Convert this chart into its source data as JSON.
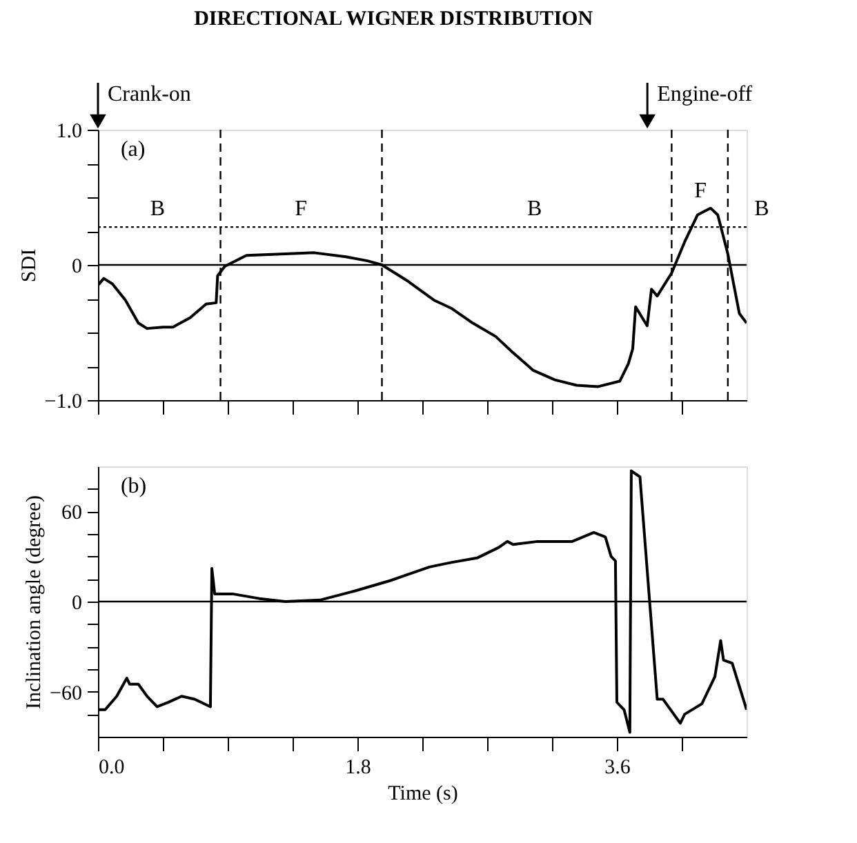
{
  "chart_data": [
    {
      "type": "line",
      "title": "DIRECTIONAL WIGNER DISTRIBUTION",
      "ylabel": "SDI",
      "xlim": [
        0,
        4.5
      ],
      "ylim": [
        -1.0,
        1.0
      ],
      "xticks": [
        {
          "value": 0,
          "label": null
        },
        {
          "value": 0.45,
          "label": null
        },
        {
          "value": 0.9,
          "label": null
        },
        {
          "value": 1.35,
          "label": null
        },
        {
          "value": 1.8,
          "label": null
        },
        {
          "value": 2.25,
          "label": null
        },
        {
          "value": 2.7,
          "label": null
        },
        {
          "value": 3.15,
          "label": null
        },
        {
          "value": 3.6,
          "label": null
        },
        {
          "value": 4.05,
          "label": null
        }
      ],
      "yticks": [
        {
          "value": 1.0,
          "label": "1.0"
        },
        {
          "value": 0.75,
          "label": null
        },
        {
          "value": 0.5,
          "label": null
        },
        {
          "value": 0.25,
          "label": null
        },
        {
          "value": 0,
          "label": "0"
        },
        {
          "value": -0.25,
          "label": null
        },
        {
          "value": -0.5,
          "label": null
        },
        {
          "value": -0.75,
          "label": null
        },
        {
          "value": -1.0,
          "label": "−1.0"
        }
      ],
      "tick_labels": "y",
      "grid": false,
      "line_style": "solid",
      "marker": "none",
      "series": [
        {
          "color": "#000000",
          "x": [
            0,
            0.04,
            0.1,
            0.19,
            0.28,
            0.34,
            0.45,
            0.52,
            0.64,
            0.75,
            0.82,
            0.83,
            0.88,
            1.03,
            1.27,
            1.5,
            1.72,
            1.87,
            1.97,
            2.15,
            2.33,
            2.45,
            2.6,
            2.76,
            2.87,
            3.02,
            3.17,
            3.32,
            3.47,
            3.62,
            3.68,
            3.71,
            3.73,
            3.81,
            3.84,
            3.88,
            3.98,
            4.07,
            4.16,
            4.25,
            4.3,
            4.37,
            4.45,
            4.5
          ],
          "values": [
            -0.15,
            -0.1,
            -0.14,
            -0.26,
            -0.43,
            -0.47,
            -0.46,
            -0.46,
            -0.39,
            -0.29,
            -0.28,
            -0.08,
            -0.01,
            0.07,
            0.08,
            0.09,
            0.06,
            0.03,
            0,
            -0.12,
            -0.26,
            -0.32,
            -0.43,
            -0.53,
            -0.64,
            -0.78,
            -0.85,
            -0.89,
            -0.9,
            -0.86,
            -0.73,
            -0.62,
            -0.31,
            -0.45,
            -0.18,
            -0.23,
            -0.06,
            0.17,
            0.37,
            0.42,
            0.37,
            0.08,
            -0.36,
            -0.43
          ]
        }
      ],
      "ref_lines": [
        {
          "axis": "y",
          "value": 0,
          "color": "#000000",
          "line_style": "solid"
        },
        {
          "axis": "y",
          "value": 0.28,
          "color": "#000000",
          "line_style": "dotted"
        },
        {
          "axis": "x",
          "value": 0.85,
          "color": "#000000",
          "line_style": "dashed"
        },
        {
          "axis": "x",
          "value": 1.97,
          "color": "#000000",
          "line_style": "dashed"
        },
        {
          "axis": "x",
          "value": 3.98,
          "color": "#000000",
          "line_style": "dashed"
        },
        {
          "axis": "x",
          "value": 4.37,
          "color": "#000000",
          "line_style": "dashed"
        }
      ],
      "annotations": [
        "(a)",
        "Crank-on",
        "Engine-off",
        "B",
        "F",
        "B",
        "F",
        "B"
      ]
    },
    {
      "type": "line",
      "xlabel": "Time (s)",
      "ylabel": "Inclination angle (degree)",
      "xlim": [
        0,
        4.5
      ],
      "ylim": [
        -90,
        90
      ],
      "xticks": [
        {
          "value": 0,
          "label": "0.0"
        },
        {
          "value": 0.45,
          "label": null
        },
        {
          "value": 0.9,
          "label": null
        },
        {
          "value": 1.35,
          "label": null
        },
        {
          "value": 1.8,
          "label": "1.8"
        },
        {
          "value": 2.25,
          "label": null
        },
        {
          "value": 2.7,
          "label": null
        },
        {
          "value": 3.15,
          "label": null
        },
        {
          "value": 3.6,
          "label": "3.6"
        },
        {
          "value": 4.05,
          "label": null
        }
      ],
      "yticks": [
        {
          "value": 75,
          "label": null
        },
        {
          "value": 60,
          "label": "60"
        },
        {
          "value": 45,
          "label": null
        },
        {
          "value": 30,
          "label": null
        },
        {
          "value": 15,
          "label": null
        },
        {
          "value": 0,
          "label": "0"
        },
        {
          "value": -15,
          "label": null
        },
        {
          "value": -30,
          "label": null
        },
        {
          "value": -45,
          "label": null
        },
        {
          "value": -60,
          "label": "−60"
        },
        {
          "value": -75,
          "label": null
        }
      ],
      "grid": false,
      "line_style": "solid",
      "marker": "none",
      "series": [
        {
          "color": "#000000",
          "x": [
            0,
            0.05,
            0.13,
            0.2,
            0.22,
            0.28,
            0.34,
            0.41,
            0.49,
            0.58,
            0.67,
            0.78,
            0.79,
            0.81,
            0.94,
            1.12,
            1.3,
            1.54,
            1.78,
            2.03,
            2.12,
            2.3,
            2.45,
            2.63,
            2.78,
            2.84,
            2.88,
            3.05,
            3.29,
            3.44,
            3.52,
            3.56,
            3.59,
            3.6,
            3.65,
            3.69,
            3.7,
            3.76,
            3.88,
            3.92,
            4.04,
            4.07,
            4.19,
            4.28,
            4.32,
            4.34,
            4.4,
            4.5
          ],
          "values": [
            -72,
            -72,
            -63,
            -51,
            -55,
            -55,
            -63,
            -70,
            -67,
            -63,
            -65,
            -70,
            22,
            5,
            5,
            2,
            0,
            1,
            7,
            14,
            17,
            23,
            26,
            29,
            36,
            40,
            38,
            40,
            40,
            46,
            43,
            30,
            27,
            -67,
            -72,
            -87,
            87,
            83,
            -65,
            -65,
            -81,
            -75,
            -68,
            -50,
            -26,
            -39,
            -41,
            -72
          ]
        }
      ],
      "ref_lines": [
        {
          "axis": "y",
          "value": 0,
          "color": "#000000",
          "line_style": "solid"
        }
      ],
      "annotations": [
        "(b)"
      ]
    }
  ]
}
